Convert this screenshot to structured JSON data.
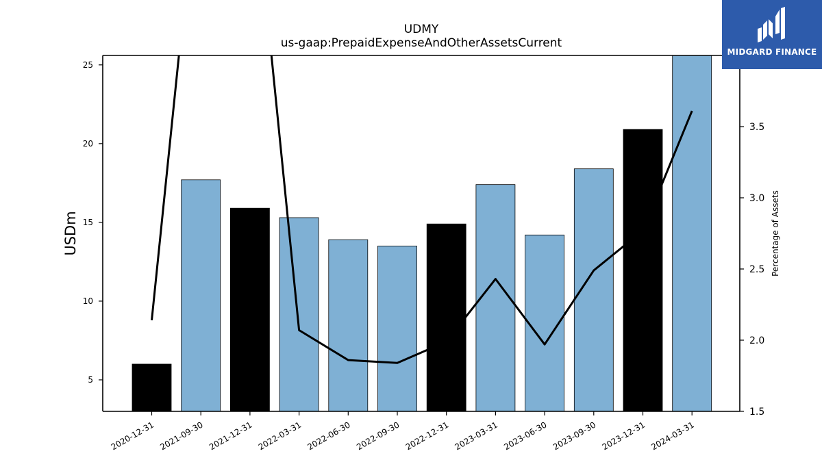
{
  "chart_data": {
    "type": "bar",
    "title": "UDMY",
    "subtitle": "us-gaap:PrepaidExpenseAndOtherAssetsCurrent",
    "ylabel": "USDm",
    "y2label": "Percentage of Assets",
    "categories": [
      "2020-12-31",
      "2021-09-30",
      "2021-12-31",
      "2022-03-31",
      "2022-06-30",
      "2022-09-30",
      "2022-12-31",
      "2023-03-31",
      "2023-06-30",
      "2023-09-30",
      "2023-12-31",
      "2024-03-31"
    ],
    "series": [
      {
        "kind": "bar",
        "axis": "left",
        "values": [
          6.0,
          17.7,
          15.9,
          15.3,
          13.9,
          13.5,
          14.9,
          17.4,
          14.2,
          18.4,
          20.9,
          25.6
        ],
        "colors": [
          "#000000",
          "#7fb0d4",
          "#000000",
          "#7fb0d4",
          "#7fb0d4",
          "#7fb0d4",
          "#000000",
          "#7fb0d4",
          "#7fb0d4",
          "#7fb0d4",
          "#000000",
          "#7fb0d4"
        ]
      },
      {
        "kind": "line",
        "axis": "right",
        "color": "#000000",
        "values": [
          2.14,
          5.5,
          5.5,
          2.07,
          1.86,
          1.84,
          1.99,
          2.43,
          1.97,
          2.49,
          2.77,
          3.61
        ]
      }
    ],
    "ylim": [
      3.0,
      25.6
    ],
    "y2lim": [
      1.5,
      4.0
    ],
    "yticks": [
      5,
      10,
      15,
      20,
      25
    ],
    "y2ticks": [
      "1.5",
      "2.0",
      "2.5",
      "3.0",
      "3.5"
    ],
    "grid": false,
    "legend": "none"
  },
  "brand": {
    "name": "MIDGARD FINANCE",
    "color": "#2d5bab"
  }
}
